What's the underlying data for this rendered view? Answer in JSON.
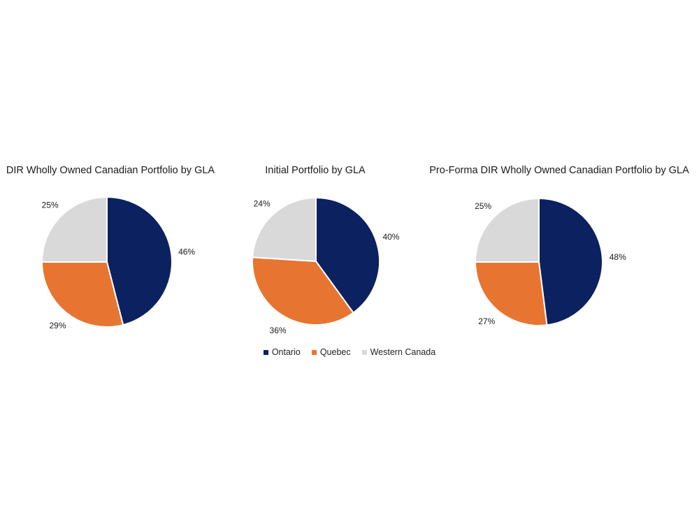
{
  "chart_data": [
    {
      "type": "pie",
      "title": "DIR Wholly Owned Canadian Portfolio by GLA",
      "categories": [
        "Ontario",
        "Quebec",
        "Western Canada"
      ],
      "values": [
        46,
        29,
        25
      ],
      "labels": [
        "46%",
        "29%",
        "25%"
      ]
    },
    {
      "type": "pie",
      "title": "Initial Portfolio by GLA",
      "categories": [
        "Ontario",
        "Quebec",
        "Western Canada"
      ],
      "values": [
        40,
        36,
        24
      ],
      "labels": [
        "40%",
        "36%",
        "24%"
      ]
    },
    {
      "type": "pie",
      "title": "Pro-Forma DIR Wholly Owned Canadian Portfolio by GLA",
      "categories": [
        "Ontario",
        "Quebec",
        "Western Canada"
      ],
      "values": [
        48,
        27,
        25
      ],
      "labels": [
        "48%",
        "27%",
        "25%"
      ]
    }
  ],
  "legend": {
    "placement": "bottom-center",
    "items": [
      {
        "label": "Ontario",
        "color": "#0b2160"
      },
      {
        "label": "Quebec",
        "color": "#e87431"
      },
      {
        "label": "Western Canada",
        "color": "#d9d9d9"
      }
    ]
  }
}
